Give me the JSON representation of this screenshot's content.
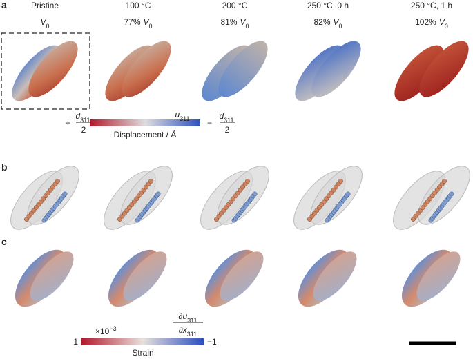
{
  "panel_labels": [
    "a",
    "b",
    "c"
  ],
  "columns": [
    {
      "title": "Pristine",
      "volume": {
        "symbol": "V",
        "subscript": "0"
      }
    },
    {
      "title": "100 °C",
      "volume": {
        "prefix": "77%",
        "symbol": "V",
        "subscript": "0"
      }
    },
    {
      "title": "200 °C",
      "volume": {
        "prefix": "81%",
        "symbol": "V",
        "subscript": "0"
      }
    },
    {
      "title": "250 °C, 0 h",
      "volume": {
        "prefix": "82%",
        "symbol": "V",
        "subscript": "0"
      }
    },
    {
      "title": "250 °C, 1 h",
      "volume": {
        "prefix": "102%",
        "symbol": "V",
        "subscript": "0"
      }
    }
  ],
  "displacement_colorbar": {
    "label": "Displacement / Å",
    "variable": {
      "symbol": "u",
      "subscript": "311"
    },
    "left": {
      "sign": "+",
      "numerator": {
        "symbol": "d",
        "subscript": "311"
      },
      "denominator": "2"
    },
    "right": {
      "sign": "−",
      "numerator": {
        "symbol": "d",
        "subscript": "311"
      },
      "denominator": "2"
    }
  },
  "strain_colorbar": {
    "label": "Strain",
    "left": "1",
    "right": "−1",
    "multiplier": {
      "base": "×10",
      "exponent": "−3"
    },
    "variable": {
      "numerator": {
        "operator": "∂",
        "symbol": "u",
        "subscript": "311"
      },
      "denominator": {
        "operator": "∂",
        "symbol": "x",
        "subscript": "311"
      }
    }
  }
}
